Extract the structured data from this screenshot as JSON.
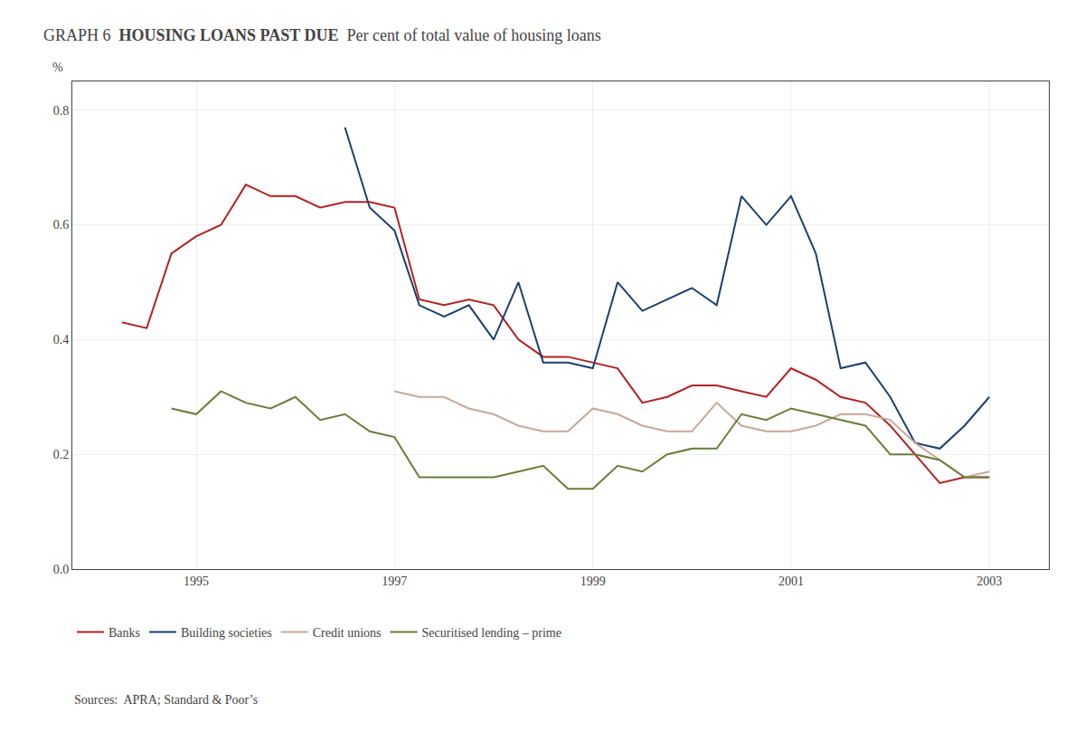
{
  "chart_data": {
    "type": "line",
    "title": "HOUSING LOANS PAST DUE",
    "subtitle": "Per cent of total value of housing loans",
    "ylabel": "%",
    "annotations": [
      "GRAPH 6",
      "Sources:  APRA; Standard & Poor’s"
    ],
    "xlim": [
      1993.75,
      2003.6
    ],
    "xticks": [
      1995,
      1997,
      1999,
      2001,
      2003
    ],
    "ylim": [
      0.0,
      0.85
    ],
    "yticks": [
      {
        "value": 0.0,
        "label": "0.0"
      },
      0.2,
      0.4,
      0.6,
      0.8
    ],
    "grid": true,
    "legend": "bottom",
    "series": [
      {
        "name": "Banks",
        "color": "#b22222",
        "x": [
          1994.25,
          1994.5,
          1994.75,
          1995.0,
          1995.25,
          1995.5,
          1995.75,
          1996.0,
          1996.25,
          1996.5,
          1996.75,
          1997.0,
          1997.25,
          1997.5,
          1997.75,
          1998.0,
          1998.25,
          1998.5,
          1998.75,
          1999.0,
          1999.25,
          1999.5,
          1999.75,
          2000.0,
          2000.25,
          2000.5,
          2000.75,
          2001.0,
          2001.25,
          2001.5,
          2001.75,
          2002.0,
          2002.25,
          2002.5,
          2002.75,
          2003.0
        ],
        "values": [
          0.43,
          0.42,
          0.55,
          0.58,
          0.6,
          0.67,
          0.65,
          0.65,
          0.63,
          0.64,
          0.64,
          0.63,
          0.47,
          0.46,
          0.47,
          0.46,
          0.4,
          0.37,
          0.37,
          0.36,
          0.35,
          0.29,
          0.3,
          0.32,
          0.32,
          0.31,
          0.3,
          0.35,
          0.33,
          0.3,
          0.29,
          0.25,
          0.2,
          0.15,
          0.16,
          0.16
        ]
      },
      {
        "name": "Building societies",
        "color": "#1c3f6e",
        "x": [
          1996.5,
          1996.75,
          1997.0,
          1997.25,
          1997.5,
          1997.75,
          1998.0,
          1998.25,
          1998.5,
          1998.75,
          1999.0,
          1999.25,
          1999.5,
          1999.75,
          2000.0,
          2000.25,
          2000.5,
          2000.75,
          2001.0,
          2001.25,
          2001.5,
          2001.75,
          2002.0,
          2002.25,
          2002.5,
          2002.75,
          2003.0
        ],
        "values": [
          0.77,
          0.63,
          0.59,
          0.46,
          0.44,
          0.46,
          0.4,
          0.5,
          0.36,
          0.36,
          0.35,
          0.5,
          0.45,
          0.47,
          0.49,
          0.46,
          0.65,
          0.6,
          0.65,
          0.55,
          0.35,
          0.36,
          0.3,
          0.22,
          0.21,
          0.25,
          0.3
        ]
      },
      {
        "name": "Credit unions",
        "color": "#c8a898",
        "x": [
          1997.0,
          1997.25,
          1997.5,
          1997.75,
          1998.0,
          1998.25,
          1998.5,
          1998.75,
          1999.0,
          1999.25,
          1999.5,
          1999.75,
          2000.0,
          2000.25,
          2000.5,
          2000.75,
          2001.0,
          2001.25,
          2001.5,
          2001.75,
          2002.0,
          2002.25,
          2002.5,
          2002.75,
          2003.0
        ],
        "values": [
          0.31,
          0.3,
          0.3,
          0.28,
          0.27,
          0.25,
          0.24,
          0.24,
          0.28,
          0.27,
          0.25,
          0.24,
          0.24,
          0.29,
          0.25,
          0.24,
          0.24,
          0.25,
          0.27,
          0.27,
          0.26,
          0.22,
          0.19,
          0.16,
          0.17
        ]
      },
      {
        "name": "Securitised lending – prime",
        "color": "#6b7c3a",
        "x": [
          1994.75,
          1995.0,
          1995.25,
          1995.5,
          1995.75,
          1996.0,
          1996.25,
          1996.5,
          1996.75,
          1997.0,
          1997.25,
          1997.5,
          1997.75,
          1998.0,
          1998.25,
          1998.5,
          1998.75,
          1999.0,
          1999.25,
          1999.5,
          1999.75,
          2000.0,
          2000.25,
          2000.5,
          2000.75,
          2001.0,
          2001.25,
          2001.5,
          2001.75,
          2002.0,
          2002.25,
          2002.5,
          2002.75,
          2003.0
        ],
        "values": [
          0.28,
          0.27,
          0.31,
          0.29,
          0.28,
          0.3,
          0.26,
          0.27,
          0.24,
          0.23,
          0.16,
          0.16,
          0.16,
          0.16,
          0.17,
          0.18,
          0.14,
          0.14,
          0.18,
          0.17,
          0.2,
          0.21,
          0.21,
          0.27,
          0.26,
          0.28,
          0.27,
          0.26,
          0.25,
          0.2,
          0.2,
          0.19,
          0.16,
          0.16
        ]
      }
    ]
  }
}
